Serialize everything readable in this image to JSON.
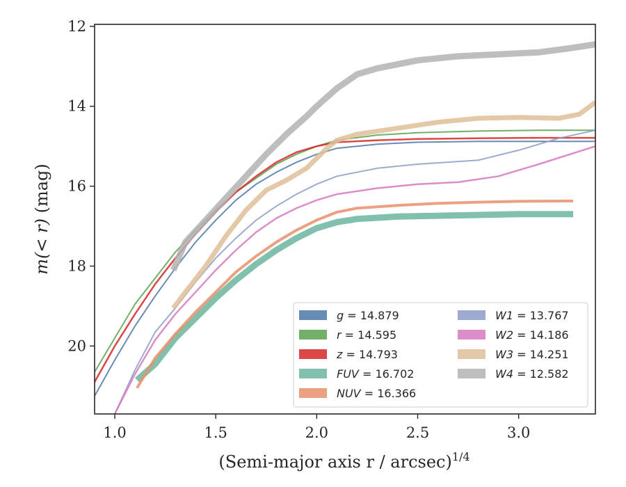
{
  "chart_data": {
    "type": "line",
    "xlabel": "(Semi-major axis r / arcsec)",
    "xlabel_superscript": "1/4",
    "ylabel_prefix": "m(< r)",
    "ylabel_suffix": "(mag)",
    "xlim": [
      0.9,
      3.38
    ],
    "ylim": [
      21.7,
      11.95
    ],
    "y_inverted": true,
    "x_ticks": [
      1.0,
      1.5,
      2.0,
      2.5,
      3.0
    ],
    "x_tick_labels": [
      "1.0",
      "1.5",
      "2.0",
      "2.5",
      "3.0"
    ],
    "y_ticks": [
      12,
      14,
      16,
      18,
      20
    ],
    "y_tick_labels": [
      "12",
      "14",
      "16",
      "18",
      "20"
    ],
    "grid": false,
    "legend_position": "lower-right",
    "series": [
      {
        "name": "g",
        "value": "14.879",
        "color": "#4c78a8",
        "width": 2,
        "x": [
          0.9,
          1.0,
          1.1,
          1.2,
          1.3,
          1.4,
          1.5,
          1.6,
          1.7,
          1.8,
          1.9,
          2.0,
          2.1,
          2.3,
          2.5,
          2.8,
          3.1,
          3.38
        ],
        "y": [
          21.25,
          20.35,
          19.5,
          18.75,
          18.05,
          17.4,
          16.85,
          16.35,
          15.95,
          15.65,
          15.4,
          15.2,
          15.05,
          14.95,
          14.9,
          14.88,
          14.88,
          14.88
        ]
      },
      {
        "name": "r",
        "value": "14.595",
        "color": "#59a14f",
        "width": 2,
        "x": [
          0.9,
          1.0,
          1.1,
          1.2,
          1.3,
          1.4,
          1.5,
          1.6,
          1.7,
          1.8,
          1.9,
          2.0,
          2.1,
          2.3,
          2.5,
          2.8,
          3.1,
          3.38
        ],
        "y": [
          20.65,
          19.8,
          18.95,
          18.3,
          17.65,
          17.1,
          16.6,
          16.15,
          15.8,
          15.45,
          15.2,
          15.0,
          14.85,
          14.72,
          14.66,
          14.62,
          14.6,
          14.6
        ]
      },
      {
        "name": "z",
        "value": "14.793",
        "color": "#d62728",
        "width": 2.5,
        "x": [
          0.9,
          1.0,
          1.1,
          1.2,
          1.3,
          1.4,
          1.5,
          1.6,
          1.7,
          1.8,
          1.9,
          2.0,
          2.1,
          2.3,
          2.5,
          2.8,
          3.1,
          3.38
        ],
        "y": [
          20.9,
          20.0,
          19.2,
          18.45,
          17.8,
          17.2,
          16.65,
          16.15,
          15.75,
          15.4,
          15.15,
          15.0,
          14.9,
          14.85,
          14.82,
          14.8,
          14.79,
          14.79
        ]
      },
      {
        "name": "FUV",
        "value": "16.702",
        "color": "#6ab59d",
        "width": 9,
        "x": [
          1.11,
          1.2,
          1.3,
          1.4,
          1.5,
          1.6,
          1.7,
          1.8,
          1.9,
          2.0,
          2.1,
          2.2,
          2.4,
          2.6,
          2.8,
          3.0,
          3.27
        ],
        "y": [
          20.85,
          20.45,
          19.8,
          19.3,
          18.8,
          18.35,
          17.95,
          17.6,
          17.3,
          17.05,
          16.9,
          16.82,
          16.76,
          16.74,
          16.72,
          16.7,
          16.7
        ]
      },
      {
        "name": "NUV",
        "value": "16.366",
        "color": "#e8916b",
        "width": 4,
        "x": [
          1.11,
          1.2,
          1.3,
          1.4,
          1.5,
          1.6,
          1.7,
          1.8,
          1.9,
          2.0,
          2.1,
          2.2,
          2.4,
          2.6,
          2.8,
          3.0,
          3.27
        ],
        "y": [
          21.05,
          20.3,
          19.7,
          19.15,
          18.65,
          18.15,
          17.75,
          17.4,
          17.1,
          16.85,
          16.65,
          16.55,
          16.48,
          16.43,
          16.4,
          16.38,
          16.37
        ]
      },
      {
        "name": "W1",
        "value": "13.767",
        "color": "#8c9cc5",
        "width": 2,
        "x": [
          1.0,
          1.1,
          1.2,
          1.3,
          1.4,
          1.5,
          1.6,
          1.7,
          1.8,
          1.9,
          2.0,
          2.1,
          2.3,
          2.5,
          2.8,
          3.0,
          3.2,
          3.38
        ],
        "y": [
          21.7,
          20.6,
          19.65,
          19.05,
          18.4,
          17.8,
          17.3,
          16.85,
          16.5,
          16.2,
          15.95,
          15.75,
          15.55,
          15.45,
          15.35,
          15.1,
          14.8,
          14.6
        ]
      },
      {
        "name": "W2",
        "value": "14.186",
        "color": "#d67ac0",
        "width": 2.5,
        "x": [
          1.0,
          1.1,
          1.2,
          1.3,
          1.4,
          1.5,
          1.6,
          1.7,
          1.8,
          1.9,
          2.0,
          2.1,
          2.3,
          2.5,
          2.7,
          2.9,
          3.1,
          3.38
        ],
        "y": [
          21.7,
          20.7,
          19.85,
          19.2,
          18.65,
          18.1,
          17.6,
          17.15,
          16.8,
          16.55,
          16.35,
          16.2,
          16.05,
          15.95,
          15.9,
          15.75,
          15.45,
          15.0
        ]
      },
      {
        "name": "W3",
        "value": "14.251",
        "color": "#dfc09a",
        "width": 7,
        "x": [
          1.29,
          1.35,
          1.45,
          1.55,
          1.65,
          1.75,
          1.85,
          1.95,
          2.0,
          2.05,
          2.1,
          2.2,
          2.4,
          2.6,
          2.8,
          3.0,
          3.2,
          3.3,
          3.38
        ],
        "y": [
          19.05,
          18.65,
          18.0,
          17.25,
          16.6,
          16.1,
          15.85,
          15.55,
          15.3,
          15.05,
          14.85,
          14.7,
          14.55,
          14.4,
          14.3,
          14.28,
          14.3,
          14.2,
          13.9
        ]
      },
      {
        "name": "W4",
        "value": "12.582",
        "color": "#b3b3b3",
        "width": 9,
        "x": [
          1.29,
          1.35,
          1.45,
          1.55,
          1.65,
          1.75,
          1.85,
          1.95,
          2.0,
          2.1,
          2.2,
          2.3,
          2.5,
          2.7,
          2.9,
          3.1,
          3.25,
          3.38
        ],
        "y": [
          18.1,
          17.4,
          16.85,
          16.3,
          15.75,
          15.2,
          14.7,
          14.25,
          14.0,
          13.55,
          13.2,
          13.05,
          12.85,
          12.75,
          12.7,
          12.65,
          12.55,
          12.45
        ]
      }
    ]
  }
}
